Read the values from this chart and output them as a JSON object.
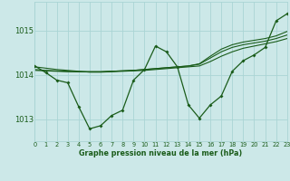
{
  "title": "Graphe pression niveau de la mer (hPa)",
  "background_color": "#cce8e8",
  "grid_color": "#aad4d4",
  "line_color": "#1a5c1a",
  "xlim": [
    0,
    23
  ],
  "ylim": [
    1012.5,
    1015.65
  ],
  "yticks": [
    1013,
    1014,
    1015
  ],
  "xticks": [
    0,
    1,
    2,
    3,
    4,
    5,
    6,
    7,
    8,
    9,
    10,
    11,
    12,
    13,
    14,
    15,
    16,
    17,
    18,
    19,
    20,
    21,
    22,
    23
  ],
  "hours": [
    0,
    1,
    2,
    3,
    4,
    5,
    6,
    7,
    8,
    9,
    10,
    11,
    12,
    13,
    14,
    15,
    16,
    17,
    18,
    19,
    20,
    21,
    22,
    23
  ],
  "pressure_main": [
    1014.2,
    1014.05,
    1013.88,
    1013.82,
    1013.28,
    1012.78,
    1012.85,
    1013.08,
    1013.2,
    1013.88,
    1014.12,
    1014.65,
    1014.52,
    1014.18,
    1013.32,
    1013.02,
    1013.32,
    1013.52,
    1014.08,
    1014.32,
    1014.45,
    1014.62,
    1015.22,
    1015.38
  ],
  "pressure_s1": [
    1014.18,
    1014.15,
    1014.12,
    1014.1,
    1014.08,
    1014.06,
    1014.06,
    1014.07,
    1014.08,
    1014.09,
    1014.1,
    1014.12,
    1014.14,
    1014.16,
    1014.18,
    1014.2,
    1014.3,
    1014.42,
    1014.52,
    1014.6,
    1014.65,
    1014.7,
    1014.75,
    1014.82
  ],
  "pressure_s2": [
    1014.1,
    1014.09,
    1014.08,
    1014.07,
    1014.07,
    1014.07,
    1014.07,
    1014.08,
    1014.09,
    1014.1,
    1014.12,
    1014.14,
    1014.16,
    1014.18,
    1014.2,
    1014.24,
    1014.38,
    1014.52,
    1014.62,
    1014.68,
    1014.72,
    1014.76,
    1014.82,
    1014.9
  ],
  "pressure_s3": [
    1014.12,
    1014.1,
    1014.09,
    1014.08,
    1014.07,
    1014.07,
    1014.07,
    1014.08,
    1014.09,
    1014.1,
    1014.12,
    1014.14,
    1014.16,
    1014.18,
    1014.2,
    1014.25,
    1014.42,
    1014.58,
    1014.68,
    1014.74,
    1014.78,
    1014.82,
    1014.88,
    1014.98
  ]
}
